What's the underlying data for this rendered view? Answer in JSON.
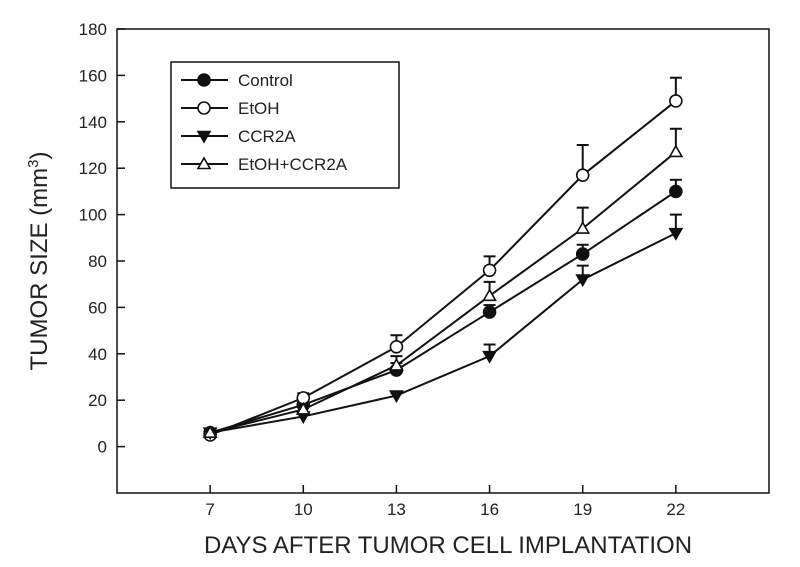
{
  "chart_data": {
    "type": "line",
    "xlabel": "DAYS AFTER TUMOR CELL IMPLANTATION",
    "ylabel_main": "TUMOR SIZE (mm",
    "ylabel_sup": "3",
    "ylabel_end": ")",
    "ylim": [
      -20,
      180
    ],
    "yticks": [
      0,
      20,
      40,
      60,
      80,
      100,
      120,
      140,
      160,
      180
    ],
    "xlim": [
      4,
      25
    ],
    "x": [
      7,
      10,
      13,
      16,
      19,
      22
    ],
    "grid": false,
    "legend_position": "top-left",
    "series": [
      {
        "name": "Control",
        "marker": "filled-circle",
        "values": [
          6,
          18,
          33,
          58,
          83,
          110
        ],
        "errors": [
          0,
          2,
          3,
          3,
          4,
          5
        ]
      },
      {
        "name": "EtOH",
        "marker": "open-circle",
        "values": [
          5,
          21,
          43,
          76,
          117,
          149
        ],
        "errors": [
          1,
          2,
          5,
          6,
          13,
          10
        ]
      },
      {
        "name": "CCR2A",
        "marker": "filled-triangle-down",
        "values": [
          6,
          13,
          22,
          39,
          72,
          92
        ],
        "errors": [
          0,
          1,
          1,
          5,
          6,
          8
        ]
      },
      {
        "name": "EtOH+CCR2A",
        "marker": "open-triangle-up",
        "values": [
          6,
          16,
          35,
          65,
          94,
          127
        ],
        "errors": [
          0,
          2,
          4,
          6,
          9,
          10
        ]
      }
    ],
    "colors": {
      "line": "#111111",
      "marker_fill": "#111111",
      "background": "#ffffff"
    }
  }
}
